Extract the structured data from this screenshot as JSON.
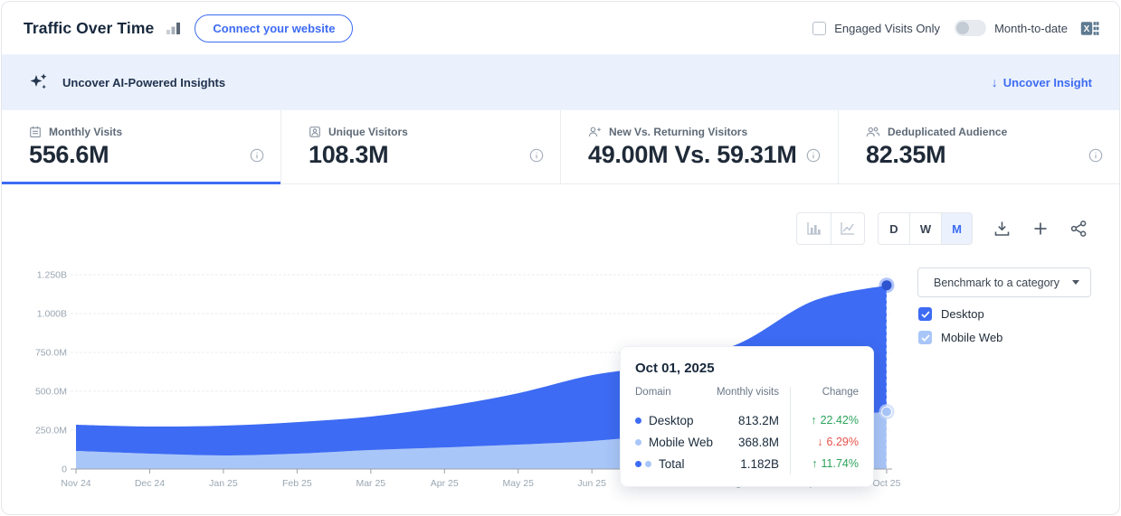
{
  "header": {
    "title": "Traffic Over Time",
    "connect_button_label": "Connect your website",
    "engaged_visits_label": "Engaged Visits Only",
    "month_to_date_label": "Month-to-date"
  },
  "banner": {
    "text": "Uncover AI-Powered Insights",
    "link_label": "Uncover Insight",
    "link_arrow": "↓"
  },
  "metrics": [
    {
      "label": "Monthly Visits",
      "value": "556.6M",
      "icon": "calendar-icon",
      "active": true
    },
    {
      "label": "Unique Visitors",
      "value": "108.3M",
      "icon": "unique-visitor-icon",
      "active": false
    },
    {
      "label": "New Vs. Returning Visitors",
      "value": "49.00M Vs. 59.31M",
      "icon": "user-plus-icon",
      "active": false
    },
    {
      "label": "Deduplicated Audience",
      "value": "82.35M",
      "icon": "users-icon",
      "active": false
    }
  ],
  "chart_controls": {
    "granularity_options": [
      "D",
      "W",
      "M"
    ],
    "granularity_selected": "M",
    "icons": [
      "bar-chart-type-icon",
      "line-chart-type-icon",
      "download-icon",
      "plus-icon",
      "share-icon"
    ]
  },
  "benchmark_dropdown": {
    "label": "Benchmark to a category"
  },
  "legend": [
    {
      "label": "Desktop",
      "checked": true,
      "color": "#3D6BF3"
    },
    {
      "label": "Mobile Web",
      "checked": true,
      "color": "#A9C6F8"
    }
  ],
  "tooltip": {
    "date": "Oct 01, 2025",
    "col_domain": "Domain",
    "col_visits": "Monthly visits",
    "col_change": "Change",
    "rows": [
      {
        "name": "Desktop",
        "visits": "813.2M",
        "arrow": "↑",
        "change": "22.42%",
        "direction": "up"
      },
      {
        "name": "Mobile Web",
        "visits": "368.8M",
        "arrow": "↓",
        "change": "6.29%",
        "direction": "down"
      },
      {
        "name": "Total",
        "visits": "1.182B",
        "arrow": "↑",
        "change": "11.74%",
        "direction": "up"
      }
    ]
  },
  "chart_data": {
    "type": "area",
    "stacked": true,
    "grid": true,
    "legend_position": "right",
    "x": [
      "Nov 24",
      "Dec 24",
      "Jan 25",
      "Feb 25",
      "Mar 25",
      "Apr 25",
      "May 25",
      "Jun 25",
      "Jul 25",
      "Aug 25",
      "Sep 25",
      "Oct 25"
    ],
    "series": [
      {
        "name": "Mobile Web",
        "color": "#A9C6F8",
        "values_millions": [
          116,
          99,
          87,
          99,
          122,
          139,
          157,
          180,
          221,
          256,
          325,
          368.8
        ]
      },
      {
        "name": "Desktop",
        "color": "#3D6BF3",
        "values_millions": [
          169,
          174,
          192,
          203,
          215,
          262,
          331,
          424,
          453,
          552,
          756,
          813.2
        ]
      }
    ],
    "y_ticks": [
      {
        "value_millions": 0,
        "label": "0"
      },
      {
        "value_millions": 250,
        "label": "250.0M"
      },
      {
        "value_millions": 500,
        "label": "500.0M"
      },
      {
        "value_millions": 750,
        "label": "750.0M"
      },
      {
        "value_millions": 1000,
        "label": "1.000B"
      },
      {
        "value_millions": 1250,
        "label": "1.250B"
      }
    ],
    "ylim_millions": [
      0,
      1350
    ],
    "highlighted_point": {
      "x": "Oct 25",
      "total_millions": 1182,
      "mobile_millions": 368.8
    }
  }
}
